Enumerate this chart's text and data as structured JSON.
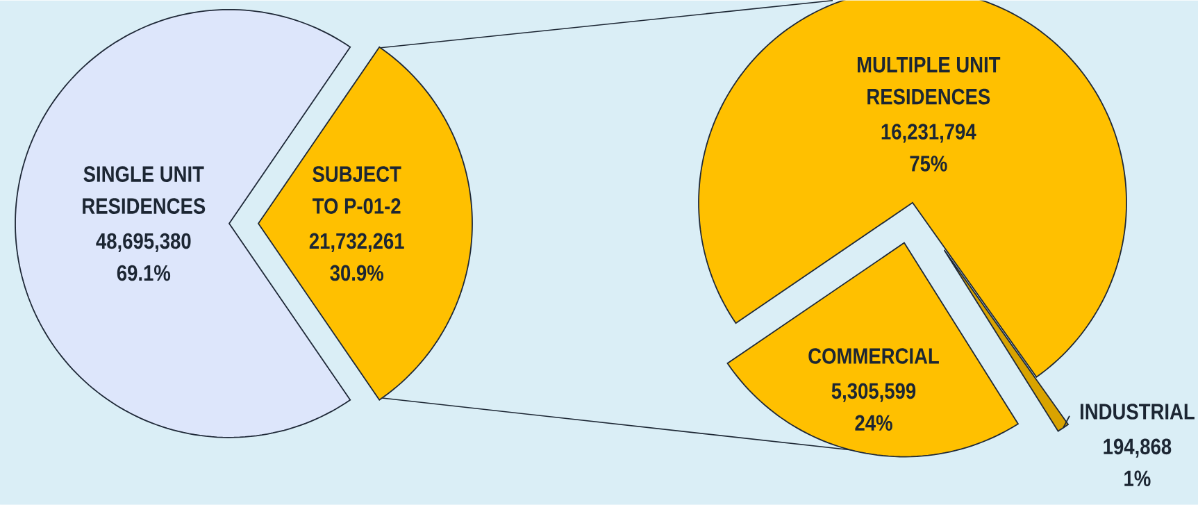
{
  "chart_data": [
    {
      "type": "pie",
      "categories": [
        "SINGLE UNIT RESIDENCES",
        "SUBJECT TO P-01-2"
      ],
      "values": [
        48695380,
        21732261
      ],
      "value_labels": [
        "48,695,380 69.1%",
        "21,732,261 30.9%"
      ],
      "colors": [
        "#dde6fb",
        "#ffc000"
      ]
    },
    {
      "type": "pie",
      "categories": [
        "MULTIPLE UNIT RESIDENCES",
        "COMMERCIAL",
        "INDUSTRIAL"
      ],
      "values": [
        16231794,
        5305599,
        194868
      ],
      "value_labels": [
        "16,231,794 75%",
        "5,305,599 24%",
        "194,868 1%"
      ],
      "colors": [
        "#ffc000",
        "#ffc000",
        "#d9a300"
      ]
    }
  ]
}
